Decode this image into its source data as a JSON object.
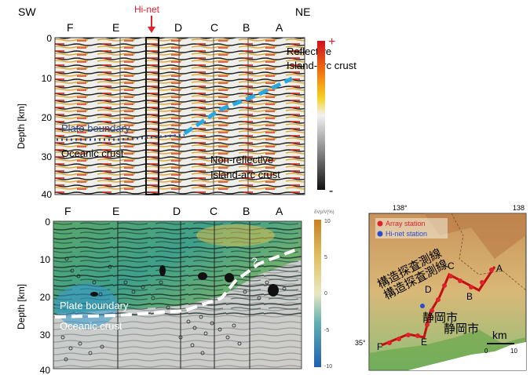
{
  "top_panel": {
    "sw_label": "SW",
    "ne_label": "NE",
    "hinet_label": "Hi-net",
    "profile_letters": [
      "F",
      "E",
      "D",
      "C",
      "B",
      "A"
    ],
    "y_axis_label": "Depth [km]",
    "y_ticks": [
      "0",
      "10",
      "20",
      "30",
      "40"
    ],
    "annotations": {
      "reflective_line1": "Reflective",
      "reflective_line2": "Island-arc crust",
      "plate_boundary": "Plate boundary",
      "oceanic_crust": "Oceanic crust",
      "nonreflective_line1": "Non-reflective",
      "nonreflective_line2": "Island-arc crust"
    },
    "colorbar_plus": "+",
    "colorbar_minus": "-"
  },
  "bottom_panel": {
    "profile_letters": [
      "F",
      "E",
      "D",
      "C",
      "B",
      "A"
    ],
    "y_axis_label": "Depth [km]",
    "y_ticks": [
      "0",
      "10",
      "20",
      "30",
      "40"
    ],
    "annotations": {
      "plate_boundary": "Plate boundary",
      "oceanic_crust": "Oceanic crust",
      "question": "?"
    },
    "colorbar_title": "δVp/V(%)",
    "colorbar_ticks": [
      "10",
      "5",
      "0",
      "-5",
      "-10"
    ]
  },
  "map": {
    "lon_left": "138°",
    "lon_right": "138",
    "lat_label": "35°",
    "legend_array": "Array station",
    "legend_hinet": "Hi-net station",
    "survey_line_1": "構造探査測線",
    "survey_line_2": "構造探査測線",
    "city_1": "静岡市",
    "city_2": "静岡市",
    "scale_unit": "km",
    "scale_ticks": [
      "0",
      "10"
    ],
    "point_letters": [
      "A",
      "B",
      "C",
      "D",
      "E",
      "F"
    ]
  },
  "colors": {
    "hinet_red": "#e0202a",
    "cyan_dash": "#29a9e0",
    "dark_blue_dot": "#2c4a8a",
    "white_dash": "#ffffff"
  }
}
